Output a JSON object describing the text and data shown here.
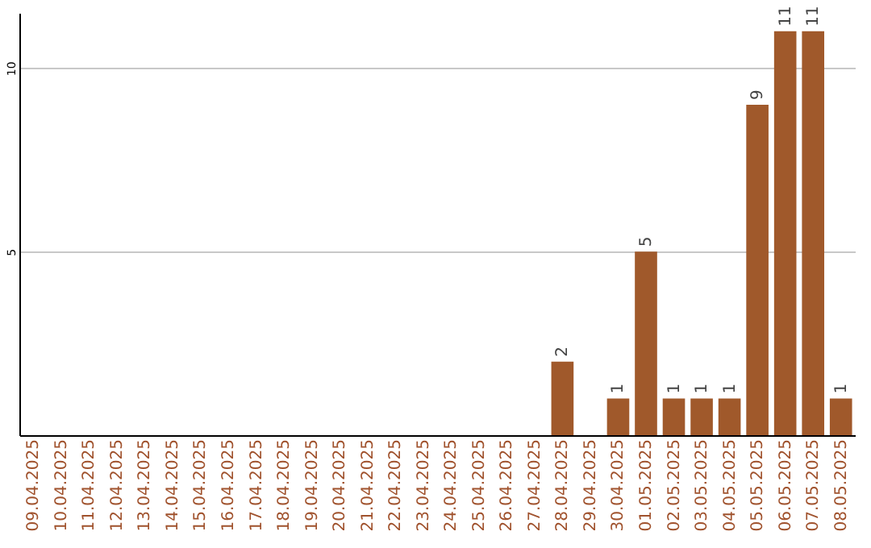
{
  "chart_data": {
    "type": "bar",
    "categories": [
      "09.04.2025",
      "10.04.2025",
      "11.04.2025",
      "12.04.2025",
      "13.04.2025",
      "14.04.2025",
      "15.04.2025",
      "16.04.2025",
      "17.04.2025",
      "18.04.2025",
      "19.04.2025",
      "20.04.2025",
      "21.04.2025",
      "22.04.2025",
      "23.04.2025",
      "24.04.2025",
      "25.04.2025",
      "26.04.2025",
      "27.04.2025",
      "28.04.2025",
      "29.04.2025",
      "30.04.2025",
      "01.05.2025",
      "02.05.2025",
      "03.05.2025",
      "04.05.2025",
      "05.05.2025",
      "06.05.2025",
      "07.05.2025",
      "08.05.2025"
    ],
    "values": [
      null,
      null,
      null,
      null,
      null,
      null,
      null,
      null,
      null,
      null,
      null,
      null,
      null,
      null,
      null,
      null,
      null,
      null,
      null,
      2,
      null,
      1,
      5,
      1,
      1,
      1,
      9,
      11,
      11,
      1
    ],
    "color": "#a0592b",
    "ylim": [
      0,
      11.5
    ],
    "yticks": [
      5,
      10
    ],
    "grid": "y",
    "data_labels": true
  }
}
